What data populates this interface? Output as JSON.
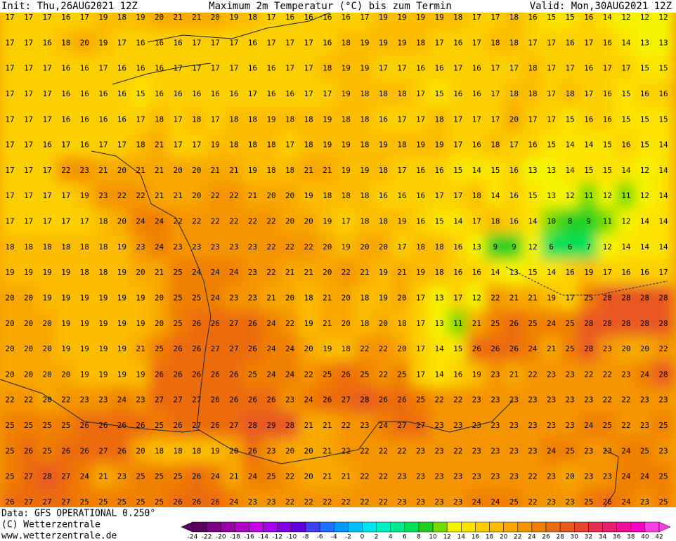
{
  "header": {
    "init": "Init: Thu,26AUG2021 12Z",
    "title": "Maximum 2m Temperatur (°C) bis zum Termin",
    "valid": "Valid: Mon,30AUG2021 12Z"
  },
  "footer": {
    "source": "Data: GFS OPERATIONAL 0.250°",
    "copyright": "(C) Wetterzentrale",
    "url": "www.wetterzentrale.de"
  },
  "scale": {
    "labels": [
      -24,
      -22,
      -20,
      -18,
      -16,
      -14,
      -12,
      -10,
      -8,
      -6,
      -4,
      -2,
      0,
      2,
      4,
      6,
      8,
      10,
      12,
      14,
      16,
      18,
      20,
      22,
      24,
      26,
      28,
      30,
      32,
      34,
      36,
      38,
      40,
      42
    ],
    "colors": [
      "#5a0060",
      "#7a0080",
      "#9a00a8",
      "#b400c8",
      "#c800e8",
      "#a800e8",
      "#8400e4",
      "#6000e0",
      "#4040f0",
      "#2070ff",
      "#0098ff",
      "#00c0ff",
      "#00e4f0",
      "#00f0c0",
      "#00e890",
      "#00e058",
      "#20d020",
      "#70dc00",
      "#f4f400",
      "#fce400",
      "#fcd000",
      "#fcbc00",
      "#f8a800",
      "#f49400",
      "#f08000",
      "#ec6c10",
      "#e85820",
      "#e44430",
      "#e43050",
      "#e42070",
      "#ec1098",
      "#f400c0",
      "#fc40e0"
    ]
  },
  "map": {
    "rows": [
      [
        17,
        17,
        17,
        16,
        17,
        19,
        18,
        19,
        20,
        21,
        21,
        20,
        19,
        18,
        17,
        16,
        16,
        16,
        16,
        17,
        19,
        19,
        19,
        19,
        18,
        17,
        17,
        18,
        16,
        15,
        15,
        16,
        14,
        12,
        12,
        12
      ],
      [
        17,
        17,
        16,
        18,
        20,
        19,
        17,
        16,
        16,
        16,
        17,
        17,
        17,
        16,
        17,
        17,
        17,
        16,
        18,
        19,
        19,
        19,
        18,
        17,
        16,
        17,
        18,
        18,
        17,
        17,
        16,
        17,
        16,
        14,
        13,
        13
      ],
      [
        17,
        17,
        17,
        16,
        16,
        17,
        16,
        16,
        16,
        17,
        17,
        17,
        17,
        16,
        16,
        17,
        17,
        18,
        19,
        19,
        17,
        17,
        16,
        16,
        17,
        16,
        17,
        17,
        18,
        17,
        17,
        16,
        17,
        17,
        15,
        15
      ],
      [
        17,
        17,
        17,
        16,
        16,
        16,
        16,
        15,
        16,
        16,
        16,
        16,
        16,
        17,
        16,
        16,
        17,
        17,
        19,
        18,
        18,
        18,
        17,
        15,
        16,
        16,
        17,
        18,
        18,
        17,
        18,
        17,
        16,
        15,
        16,
        16
      ],
      [
        17,
        17,
        17,
        16,
        16,
        16,
        16,
        17,
        18,
        17,
        18,
        17,
        18,
        18,
        19,
        18,
        18,
        19,
        18,
        18,
        16,
        17,
        17,
        18,
        17,
        17,
        17,
        20,
        17,
        17,
        15,
        16,
        16,
        15,
        15,
        15
      ],
      [
        17,
        17,
        16,
        17,
        16,
        17,
        17,
        18,
        21,
        17,
        17,
        19,
        18,
        18,
        18,
        17,
        18,
        19,
        19,
        18,
        19,
        18,
        19,
        19,
        17,
        16,
        18,
        17,
        16,
        15,
        14,
        14,
        15,
        16,
        15,
        14
      ],
      [
        17,
        17,
        17,
        22,
        23,
        21,
        20,
        21,
        21,
        20,
        20,
        21,
        21,
        19,
        18,
        18,
        21,
        21,
        19,
        19,
        18,
        17,
        16,
        16,
        15,
        14,
        15,
        16,
        13,
        13,
        14,
        15,
        15,
        14,
        12,
        14
      ],
      [
        17,
        17,
        17,
        17,
        19,
        23,
        22,
        22,
        21,
        21,
        20,
        22,
        22,
        21,
        20,
        20,
        19,
        18,
        18,
        18,
        16,
        16,
        16,
        17,
        17,
        18,
        14,
        16,
        15,
        13,
        12,
        11,
        12,
        11,
        12,
        14
      ],
      [
        17,
        17,
        17,
        17,
        17,
        18,
        20,
        24,
        24,
        22,
        22,
        22,
        22,
        22,
        22,
        20,
        20,
        19,
        17,
        18,
        18,
        19,
        16,
        15,
        14,
        17,
        18,
        16,
        14,
        10,
        8,
        9,
        11,
        12,
        14,
        14
      ],
      [
        18,
        18,
        18,
        18,
        18,
        18,
        19,
        23,
        24,
        23,
        23,
        23,
        23,
        23,
        22,
        22,
        22,
        20,
        19,
        20,
        20,
        17,
        18,
        18,
        16,
        13,
        9,
        9,
        12,
        6,
        6,
        7,
        12,
        14,
        14,
        14
      ],
      [
        19,
        19,
        19,
        19,
        18,
        18,
        19,
        20,
        21,
        25,
        24,
        24,
        24,
        23,
        22,
        21,
        21,
        20,
        22,
        21,
        19,
        21,
        19,
        18,
        16,
        16,
        14,
        13,
        15,
        14,
        16,
        19,
        17,
        16,
        16,
        17
      ],
      [
        20,
        20,
        19,
        19,
        19,
        19,
        19,
        19,
        20,
        25,
        25,
        24,
        23,
        23,
        21,
        20,
        18,
        21,
        20,
        18,
        19,
        20,
        17,
        13,
        17,
        12,
        22,
        21,
        21,
        19,
        17,
        25,
        28,
        28,
        28,
        28
      ],
      [
        20,
        20,
        20,
        19,
        19,
        19,
        19,
        19,
        20,
        25,
        26,
        26,
        27,
        26,
        24,
        22,
        19,
        21,
        20,
        18,
        20,
        18,
        17,
        13,
        11,
        21,
        25,
        26,
        25,
        24,
        25,
        28,
        28,
        28,
        28,
        28
      ],
      [
        20,
        20,
        20,
        19,
        19,
        19,
        19,
        21,
        25,
        26,
        26,
        27,
        27,
        26,
        24,
        24,
        20,
        19,
        18,
        22,
        22,
        20,
        17,
        14,
        15,
        26,
        26,
        26,
        24,
        21,
        25,
        28,
        23,
        20,
        20,
        22
      ],
      [
        20,
        20,
        20,
        20,
        19,
        19,
        19,
        19,
        26,
        26,
        26,
        26,
        26,
        25,
        24,
        24,
        22,
        25,
        26,
        25,
        22,
        25,
        17,
        14,
        16,
        19,
        23,
        21,
        22,
        23,
        23,
        22,
        22,
        23,
        24,
        28
      ],
      [
        22,
        22,
        20,
        22,
        23,
        23,
        24,
        23,
        27,
        27,
        27,
        26,
        26,
        26,
        26,
        23,
        24,
        26,
        27,
        28,
        26,
        26,
        25,
        22,
        22,
        23,
        23,
        23,
        23,
        23,
        23,
        23,
        22,
        22,
        23,
        23
      ],
      [
        25,
        25,
        25,
        25,
        26,
        26,
        26,
        26,
        25,
        26,
        27,
        26,
        27,
        28,
        29,
        28,
        21,
        21,
        22,
        23,
        24,
        27,
        27,
        23,
        23,
        23,
        23,
        23,
        23,
        23,
        23,
        24,
        25,
        22,
        23,
        25
      ],
      [
        25,
        26,
        25,
        26,
        26,
        27,
        26,
        20,
        18,
        18,
        18,
        19,
        20,
        26,
        23,
        20,
        20,
        21,
        22,
        22,
        22,
        22,
        23,
        23,
        22,
        23,
        23,
        23,
        23,
        24,
        25,
        23,
        23,
        24,
        25,
        23
      ],
      [
        25,
        27,
        28,
        27,
        24,
        21,
        23,
        25,
        25,
        25,
        26,
        24,
        21,
        24,
        25,
        22,
        20,
        21,
        21,
        22,
        22,
        23,
        23,
        23,
        23,
        23,
        23,
        23,
        22,
        23,
        20,
        23,
        23,
        24,
        24,
        25
      ],
      [
        26,
        27,
        27,
        27,
        25,
        25,
        25,
        25,
        25,
        26,
        26,
        26,
        24,
        23,
        23,
        22,
        22,
        22,
        22,
        22,
        22,
        23,
        23,
        23,
        23,
        24,
        24,
        25,
        22,
        23,
        23,
        25,
        26,
        24,
        23,
        25
      ]
    ]
  }
}
